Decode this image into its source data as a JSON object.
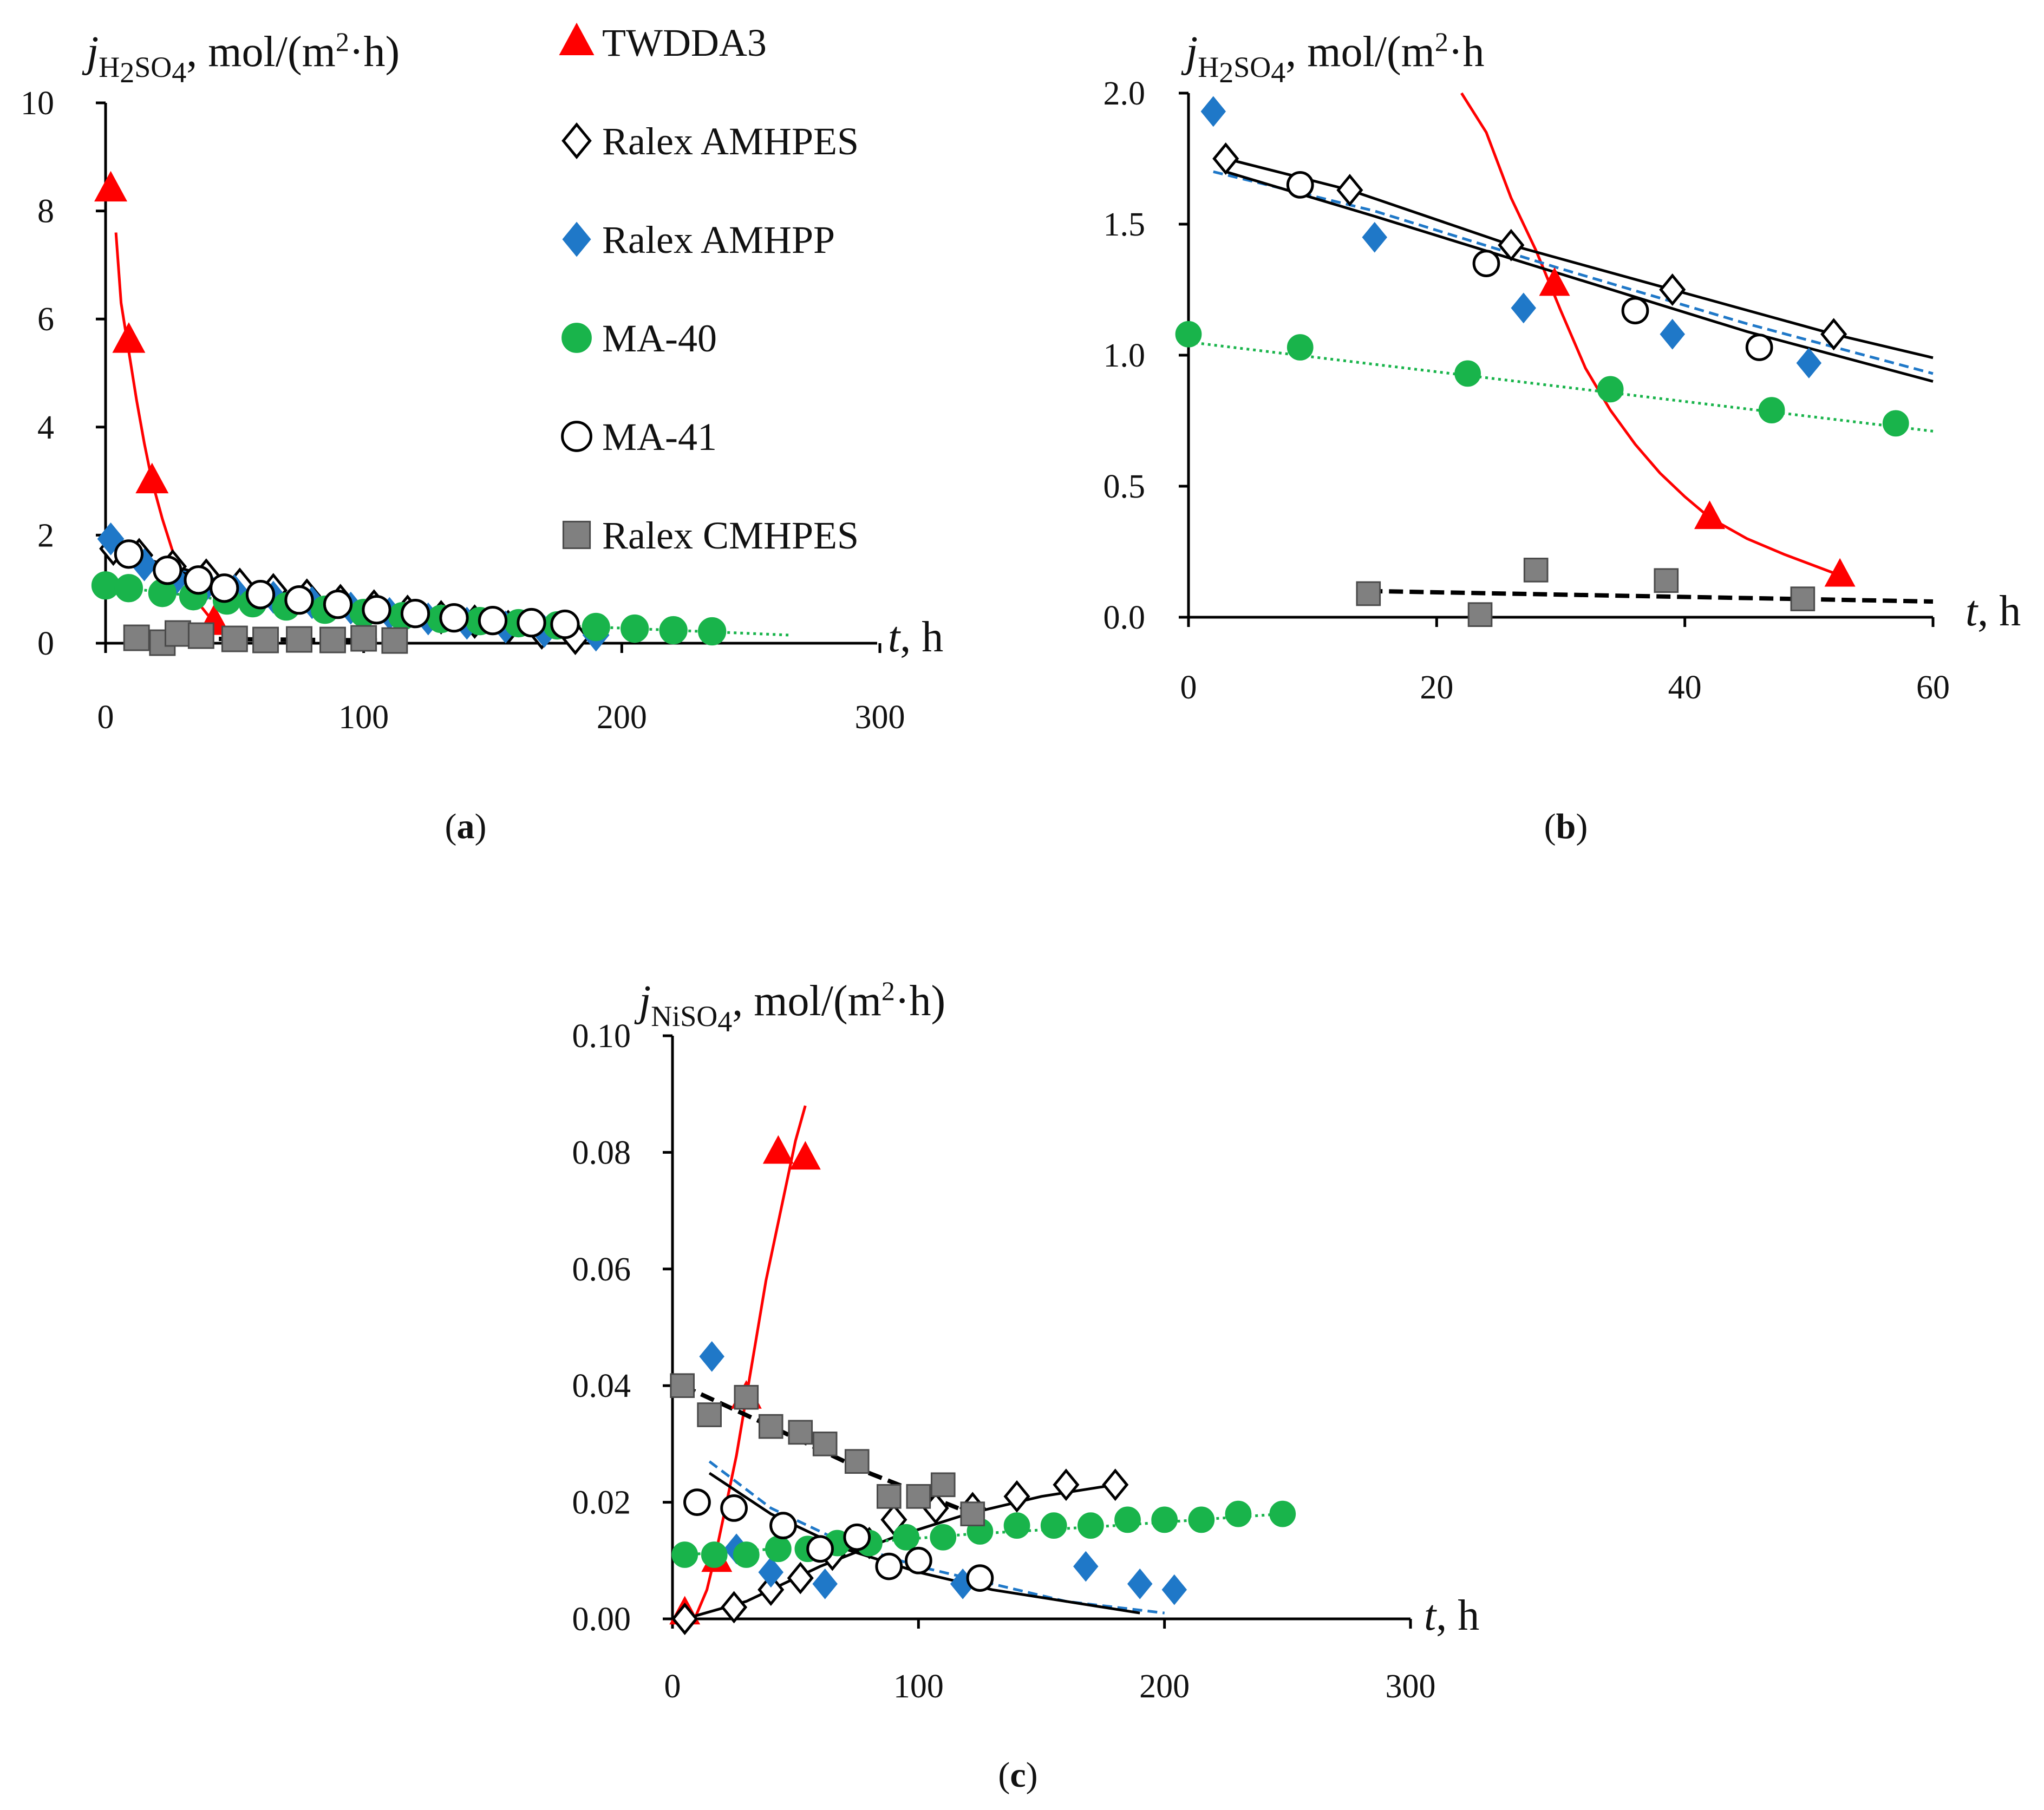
{
  "colors": {
    "twdda3": "#ff0000",
    "amhpp": "#1f78c8",
    "ma40": "#19b44b",
    "cmhpes": "#808080",
    "black": "#000000"
  },
  "legend": [
    {
      "label": "TWDDA3",
      "marker": "triangle-icon"
    },
    {
      "label": "Ralex AMHPES",
      "marker": "diamond-open-icon"
    },
    {
      "label": "Ralex AMHPP",
      "marker": "diamond-filled-icon"
    },
    {
      "label": "MA-40",
      "marker": "circle-filled-icon"
    },
    {
      "label": "MA-41",
      "marker": "circle-open-icon"
    },
    {
      "label": "Ralex CMHPES",
      "marker": "square-icon"
    }
  ],
  "chart_data": [
    {
      "id": "a",
      "type": "scatter",
      "caption_letter": "a",
      "ylabel_j": "j",
      "ylabel_sub_a": "H",
      "ylabel_sub_b": "2",
      "ylabel_sub_c": "SO",
      "ylabel_sub_d": "4",
      "ylabel_units": ", mol/(m",
      "ylabel_sup": "2",
      "ylabel_tail": "·h)",
      "xlabel_t": "t",
      "xlabel_unit": ", h",
      "xlim": [
        0,
        300
      ],
      "ylim": [
        0,
        10
      ],
      "xticks": [
        "0",
        "100",
        "200",
        "300"
      ],
      "yticks": [
        "0",
        "2",
        "4",
        "6",
        "8",
        "10"
      ],
      "series": [
        {
          "name": "TWDDA3",
          "marker": "triangle",
          "x": [
            2,
            9,
            18,
            42
          ],
          "y": [
            8.4,
            5.6,
            3.0,
            0.38
          ],
          "fit": {
            "style": "solid",
            "x": [
              4,
              6,
              9,
              12,
              15,
              18,
              22,
              26,
              30,
              35,
              40,
              45,
              50,
              55
            ],
            "y": [
              7.6,
              6.3,
              5.4,
              4.5,
              3.7,
              3.0,
              2.3,
              1.7,
              1.25,
              0.8,
              0.5,
              0.3,
              0.18,
              0.1
            ]
          }
        },
        {
          "name": "Ralex AMHPES",
          "marker": "diamond-open",
          "x": [
            3,
            13,
            26,
            39,
            52,
            65,
            78,
            91,
            104,
            117,
            130,
            143,
            156,
            169,
            182
          ],
          "y": [
            1.75,
            1.63,
            1.42,
            1.25,
            1.08,
            0.98,
            0.88,
            0.78,
            0.68,
            0.58,
            0.48,
            0.4,
            0.3,
            0.2,
            0.1
          ],
          "fit": {
            "style": "solid",
            "x": [
              0,
              60,
              120,
              180
            ],
            "y": [
              1.75,
              1.0,
              0.55,
              0.18
            ]
          }
        },
        {
          "name": "Ralex AMHPP",
          "marker": "diamond-filled",
          "x": [
            2,
            15,
            27,
            39,
            50,
            65,
            80,
            95,
            110,
            125,
            140,
            155,
            170,
            190
          ],
          "y": [
            1.93,
            1.45,
            1.18,
            1.08,
            0.97,
            0.85,
            0.75,
            0.65,
            0.55,
            0.45,
            0.37,
            0.3,
            0.22,
            0.15
          ],
          "fit": {
            "style": "dashed",
            "x": [
              0,
              60,
              120,
              190
            ],
            "y": [
              1.72,
              0.93,
              0.52,
              0.2
            ]
          }
        },
        {
          "name": "MA-40",
          "marker": "circle-filled",
          "x": [
            0,
            9,
            22,
            34,
            47,
            57,
            70,
            85,
            100,
            115,
            130,
            145,
            160,
            175,
            190,
            205,
            220,
            235
          ],
          "y": [
            1.07,
            1.02,
            0.93,
            0.87,
            0.79,
            0.74,
            0.68,
            0.62,
            0.56,
            0.5,
            0.45,
            0.41,
            0.37,
            0.33,
            0.3,
            0.27,
            0.24,
            0.22
          ],
          "fit": {
            "style": "dotted",
            "x": [
              0,
              60,
              120,
              180,
              265
            ],
            "y": [
              1.07,
              0.72,
              0.5,
              0.32,
              0.15
            ]
          }
        },
        {
          "name": "MA-41",
          "marker": "circle-open",
          "x": [
            9,
            24,
            36,
            46,
            60,
            75,
            90,
            105,
            120,
            135,
            150,
            165,
            178
          ],
          "y": [
            1.65,
            1.35,
            1.17,
            1.02,
            0.9,
            0.8,
            0.72,
            0.62,
            0.55,
            0.47,
            0.42,
            0.38,
            0.35
          ],
          "fit": {
            "style": "solid",
            "x": [
              0,
              60,
              120,
              180
            ],
            "y": [
              1.7,
              0.9,
              0.52,
              0.3
            ]
          }
        },
        {
          "name": "Ralex CMHPES",
          "marker": "square",
          "x": [
            12,
            22,
            28,
            37,
            50,
            62,
            75,
            88,
            100,
            112
          ],
          "y": [
            0.1,
            0.01,
            0.18,
            0.14,
            0.08,
            0.06,
            0.07,
            0.06,
            0.09,
            0.05
          ],
          "fit": {
            "style": "dashed",
            "x": [
              12,
              60,
              110
            ],
            "y": [
              0.1,
              0.07,
              0.05
            ]
          }
        }
      ]
    },
    {
      "id": "b",
      "type": "scatter",
      "caption_letter": "b",
      "ylabel_j": "j",
      "ylabel_sub_a": "H",
      "ylabel_sub_b": "2",
      "ylabel_sub_c": "SO",
      "ylabel_sub_d": "4",
      "ylabel_units": ", mol/(m",
      "ylabel_sup": "2",
      "ylabel_tail": "·h",
      "xlabel_t": "t",
      "xlabel_unit": ", h",
      "xlim": [
        0,
        60
      ],
      "ylim": [
        0,
        2.0
      ],
      "xticks": [
        "0",
        "20",
        "40",
        "60"
      ],
      "yticks": [
        "0.0",
        "0.5",
        "1.0",
        "1.5",
        "2.0"
      ],
      "series": [
        {
          "name": "TWDDA3",
          "marker": "triangle",
          "x": [
            29.5,
            42,
            52.5
          ],
          "y": [
            1.27,
            0.38,
            0.16
          ],
          "fit": {
            "style": "solid",
            "x": [
              22,
              24,
              26,
              28,
              30,
              32,
              34,
              36,
              38,
              40,
              42,
              45,
              48,
              52.5
            ],
            "y": [
              2.0,
              1.85,
              1.6,
              1.4,
              1.17,
              0.95,
              0.79,
              0.66,
              0.55,
              0.46,
              0.38,
              0.3,
              0.24,
              0.16
            ]
          }
        },
        {
          "name": "Ralex AMHPES",
          "marker": "diamond-open",
          "x": [
            3,
            13,
            26,
            39,
            52
          ],
          "y": [
            1.75,
            1.63,
            1.42,
            1.25,
            1.08
          ],
          "fit": {
            "style": "solid",
            "x": [
              3,
              13,
              26,
              39,
              52,
              60
            ],
            "y": [
              1.75,
              1.63,
              1.42,
              1.25,
              1.08,
              0.99
            ]
          }
        },
        {
          "name": "Ralex AMHPP",
          "marker": "diamond-filled",
          "x": [
            2,
            15,
            27,
            39,
            50
          ],
          "y": [
            1.93,
            1.45,
            1.18,
            1.08,
            0.97
          ],
          "fit": {
            "style": "dashed",
            "x": [
              2,
              15,
              30,
              45,
              60
            ],
            "y": [
              1.7,
              1.55,
              1.33,
              1.12,
              0.93
            ]
          }
        },
        {
          "name": "MA-40",
          "marker": "circle-filled",
          "x": [
            0,
            9,
            22.5,
            34,
            47,
            57
          ],
          "y": [
            1.08,
            1.03,
            0.93,
            0.87,
            0.79,
            0.74
          ],
          "fit": {
            "style": "dotted",
            "x": [
              0,
              30,
              60
            ],
            "y": [
              1.05,
              0.88,
              0.71
            ]
          }
        },
        {
          "name": "MA-41",
          "marker": "circle-open",
          "x": [
            9,
            24,
            36,
            46
          ],
          "y": [
            1.65,
            1.35,
            1.17,
            1.03
          ],
          "fit": {
            "style": "solid",
            "x": [
              3,
              15,
              30,
              45,
              60
            ],
            "y": [
              1.7,
              1.53,
              1.31,
              1.09,
              0.9
            ]
          }
        },
        {
          "name": "Ralex CMHPES",
          "marker": "square",
          "x": [
            14.5,
            23.5,
            28,
            38.5,
            49.5
          ],
          "y": [
            0.09,
            0.01,
            0.18,
            0.14,
            0.07
          ],
          "fit": {
            "style": "dashed",
            "x": [
              14.5,
              60
            ],
            "y": [
              0.1,
              0.06
            ]
          }
        }
      ]
    },
    {
      "id": "c",
      "type": "scatter",
      "caption_letter": "c",
      "ylabel_j": "j",
      "ylabel_sub_a": "NiSO",
      "ylabel_sub_b": "",
      "ylabel_sub_c": "",
      "ylabel_sub_d": "4",
      "ylabel_units": ", mol/(m",
      "ylabel_sup": "2",
      "ylabel_tail": "·h)",
      "xlabel_t": "t",
      "xlabel_unit": ", h",
      "xlim": [
        0,
        300
      ],
      "ylim": [
        0,
        0.1
      ],
      "xticks": [
        "0",
        "100",
        "200",
        "300"
      ],
      "yticks": [
        "0.00",
        "0.02",
        "0.04",
        "0.06",
        "0.08",
        "0.10"
      ],
      "series": [
        {
          "name": "TWDDA3",
          "marker": "triangle",
          "x": [
            5,
            18,
            30,
            43,
            54
          ],
          "y": [
            0.001,
            0.01,
            0.038,
            0.08,
            0.079
          ],
          "fit": {
            "style": "solid",
            "x": [
              9,
              14,
              18,
              22,
              26,
              30,
              34,
              38,
              42,
              46,
              50,
              54
            ],
            "y": [
              0.0,
              0.005,
              0.012,
              0.02,
              0.028,
              0.038,
              0.048,
              0.058,
              0.066,
              0.074,
              0.082,
              0.088
            ]
          }
        },
        {
          "name": "Ralex AMHPES",
          "marker": "diamond-open",
          "x": [
            5,
            25,
            40,
            52,
            65,
            80,
            90,
            107,
            122,
            140,
            160,
            180
          ],
          "y": [
            0.0,
            0.002,
            0.005,
            0.007,
            0.011,
            0.013,
            0.017,
            0.019,
            0.019,
            0.021,
            0.023,
            0.023
          ],
          "fit": {
            "style": "solid",
            "x": [
              5,
              30,
              60,
              90,
              120,
              150,
              180
            ],
            "y": [
              0.0,
              0.003,
              0.009,
              0.014,
              0.018,
              0.021,
              0.023
            ]
          }
        },
        {
          "name": "Ralex AMHPP",
          "marker": "diamond-filled",
          "x": [
            16,
            26,
            40,
            62,
            118,
            168,
            190,
            204
          ],
          "y": [
            0.045,
            0.012,
            0.008,
            0.006,
            0.006,
            0.009,
            0.006,
            0.005
          ],
          "fit": {
            "style": "dashed",
            "x": [
              15,
              40,
              70,
              100,
              130,
              160,
              200
            ],
            "y": [
              0.027,
              0.019,
              0.013,
              0.009,
              0.006,
              0.003,
              0.001
            ]
          }
        },
        {
          "name": "MA-40",
          "marker": "circle-filled",
          "x": [
            5,
            17,
            30,
            43,
            55,
            67,
            80,
            95,
            110,
            125,
            140,
            155,
            170,
            185,
            200,
            215,
            230,
            248
          ],
          "y": [
            0.011,
            0.011,
            0.011,
            0.012,
            0.012,
            0.013,
            0.013,
            0.014,
            0.014,
            0.015,
            0.016,
            0.016,
            0.016,
            0.017,
            0.017,
            0.017,
            0.018,
            0.018
          ],
          "fit": {
            "style": "dotted",
            "x": [
              5,
              60,
              120,
              180,
              248
            ],
            "y": [
              0.011,
              0.0125,
              0.0145,
              0.016,
              0.018
            ]
          }
        },
        {
          "name": "MA-41",
          "marker": "circle-open",
          "x": [
            10,
            25,
            45,
            60,
            75,
            88,
            100,
            125
          ],
          "y": [
            0.02,
            0.019,
            0.016,
            0.012,
            0.014,
            0.009,
            0.01,
            0.007
          ],
          "fit": {
            "style": "solid",
            "x": [
              15,
              40,
              70,
              100,
              130,
              160,
              190
            ],
            "y": [
              0.025,
              0.018,
              0.012,
              0.008,
              0.005,
              0.003,
              0.001
            ]
          }
        },
        {
          "name": "Ralex CMHPES",
          "marker": "square",
          "x": [
            4,
            15,
            30,
            40,
            52,
            62,
            75,
            88,
            100,
            110,
            122
          ],
          "y": [
            0.04,
            0.035,
            0.038,
            0.033,
            0.032,
            0.03,
            0.027,
            0.021,
            0.021,
            0.023,
            0.018
          ],
          "fit": {
            "style": "dashed",
            "x": [
              4,
              40,
              80,
              122
            ],
            "y": [
              0.04,
              0.033,
              0.025,
              0.018
            ]
          }
        }
      ]
    }
  ]
}
